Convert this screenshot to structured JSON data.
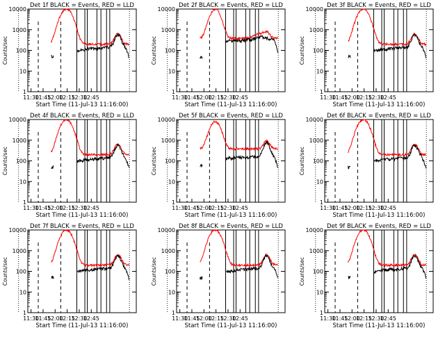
{
  "colors": {
    "events": "#000000",
    "lld": "#ff0000",
    "background": "#ffffff"
  },
  "chart_data": [
    {
      "type": "line",
      "title": "Det 1f BLACK = Events, RED = LLD",
      "xlabel": "Start Time (11-Jul-13 11:16:00)",
      "ylabel": "Counts/sec",
      "yscale": "log",
      "ylim": [
        1,
        10000
      ],
      "xticks": [
        "11:30",
        "11:45",
        "12:00",
        "12:15",
        "12:30",
        "12:45"
      ],
      "yticks": [
        "1",
        "10",
        "100",
        "1000",
        "10000"
      ]
    },
    {
      "type": "line",
      "title": "Det 2f BLACK = Events, RED = LLD",
      "xlabel": "Start Time (11-Jul-13 11:16:00)",
      "ylabel": "Counts/sec",
      "yscale": "log",
      "ylim": [
        1,
        10000
      ],
      "xticks": [
        "11:30",
        "11:45",
        "12:00",
        "12:15",
        "12:30",
        "12:45"
      ],
      "yticks": [
        "1",
        "10",
        "100",
        "1000",
        "10000"
      ]
    },
    {
      "type": "line",
      "title": "Det 3f BLACK = Events, RED = LLD",
      "xlabel": "Start Time (11-Jul-13 11:16:00)",
      "ylabel": "Counts/sec",
      "yscale": "log",
      "ylim": [
        1,
        10000
      ],
      "xticks": [
        "11:30",
        "11:45",
        "12:00",
        "12:15",
        "12:30",
        "12:45"
      ],
      "yticks": [
        "1",
        "10",
        "100",
        "1000",
        "10000"
      ]
    },
    {
      "type": "line",
      "title": "Det 4f BLACK = Events, RED = LLD",
      "xlabel": "Start Time (11-Jul-13 11:16:00)",
      "ylabel": "Counts/sec",
      "yscale": "log",
      "ylim": [
        1,
        10000
      ],
      "xticks": [
        "11:30",
        "11:45",
        "12:00",
        "12:15",
        "12:30",
        "12:45"
      ],
      "yticks": [
        "1",
        "10",
        "100",
        "1000",
        "10000"
      ]
    },
    {
      "type": "line",
      "title": "Det 5f BLACK = Events, RED = LLD",
      "xlabel": "Start Time (11-Jul-13 11:16:00)",
      "ylabel": "Counts/sec",
      "yscale": "log",
      "ylim": [
        1,
        10000
      ],
      "xticks": [
        "11:30",
        "11:45",
        "12:00",
        "12:15",
        "12:30",
        "12:45"
      ],
      "yticks": [
        "1",
        "10",
        "100",
        "1000",
        "10000"
      ]
    },
    {
      "type": "line",
      "title": "Det 6f BLACK = Events, RED = LLD",
      "xlabel": "Start Time (11-Jul-13 11:16:00)",
      "ylabel": "Counts/sec",
      "yscale": "log",
      "ylim": [
        1,
        10000
      ],
      "xticks": [
        "11:30",
        "11:45",
        "12:00",
        "12:15",
        "12:30",
        "12:45"
      ],
      "yticks": [
        "1",
        "10",
        "100",
        "1000",
        "10000"
      ]
    },
    {
      "type": "line",
      "title": "Det 7f BLACK = Events, RED = LLD",
      "xlabel": "Start Time (11-Jul-13 11:16:00)",
      "ylabel": "Counts/sec",
      "yscale": "log",
      "ylim": [
        1,
        10000
      ],
      "xticks": [
        "11:30",
        "11:45",
        "12:00",
        "12:15",
        "12:30",
        "12:45"
      ],
      "yticks": [
        "1",
        "10",
        "100",
        "1000",
        "10000"
      ]
    },
    {
      "type": "line",
      "title": "Det 8f BLACK = Events, RED = LLD",
      "xlabel": "Start Time (11-Jul-13 11:16:00)",
      "ylabel": "Counts/sec",
      "yscale": "log",
      "ylim": [
        1,
        10000
      ],
      "xticks": [
        "11:30",
        "11:45",
        "12:00",
        "12:15",
        "12:30",
        "12:45"
      ],
      "yticks": [
        "1",
        "10",
        "100",
        "1000",
        "10000"
      ]
    },
    {
      "type": "line",
      "title": "Det 9f BLACK = Events, RED = LLD",
      "xlabel": "Start Time (11-Jul-13 11:16:00)",
      "ylabel": "Counts/sec",
      "yscale": "log",
      "ylim": [
        1,
        10000
      ],
      "xticks": [
        "11:30",
        "11:45",
        "12:00",
        "12:15",
        "12:30",
        "12:45"
      ],
      "yticks": [
        "1",
        "10",
        "100",
        "1000",
        "10000"
      ]
    }
  ]
}
